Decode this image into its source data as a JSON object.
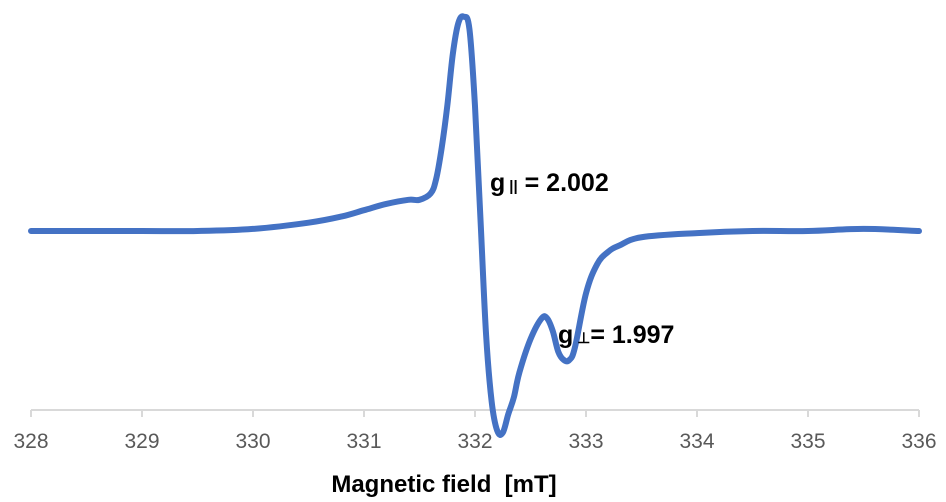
{
  "chart_data": {
    "type": "line",
    "title": "",
    "xlabel": "Magnetic field  [mT]",
    "ylabel": "",
    "xlim": [
      328,
      336
    ],
    "x_ticks": [
      "328",
      "329",
      "330",
      "331",
      "332",
      "333",
      "334",
      "335",
      "336"
    ],
    "grid": false,
    "legend": "none",
    "series_color": "#4472C4",
    "axis_color": "#D9D9D9",
    "series": [
      {
        "x": [
          328.0,
          328.5,
          329.0,
          329.5,
          330.0,
          330.5,
          330.8,
          331.0,
          331.2,
          331.4,
          331.5,
          331.6,
          331.65,
          331.7,
          331.75,
          331.8,
          331.85,
          331.9,
          331.95,
          332.0,
          332.05,
          332.1,
          332.15,
          332.2,
          332.25,
          332.3,
          332.35,
          332.4,
          332.5,
          332.6,
          332.65,
          332.7,
          332.75,
          332.8,
          332.85,
          332.9,
          333.0,
          333.1,
          333.2,
          333.3,
          333.5,
          334.0,
          334.5,
          335.0,
          335.5,
          336.0
        ],
        "values": [
          0.0,
          0.0,
          0.0,
          0.0,
          0.01,
          0.04,
          0.07,
          0.1,
          0.13,
          0.15,
          0.15,
          0.18,
          0.25,
          0.4,
          0.6,
          0.85,
          1.0,
          1.03,
          0.97,
          0.6,
          0.05,
          -0.5,
          -0.82,
          -0.96,
          -0.97,
          -0.88,
          -0.8,
          -0.68,
          -0.52,
          -0.42,
          -0.42,
          -0.48,
          -0.58,
          -0.62,
          -0.62,
          -0.56,
          -0.3,
          -0.16,
          -0.1,
          -0.07,
          -0.03,
          -0.01,
          0.0,
          0.0,
          0.01,
          0.0
        ]
      }
    ],
    "annotations": [
      {
        "label": "g",
        "subscript": "||",
        "text": " = 2.002"
      },
      {
        "label": "g",
        "subscript": "⊥",
        "text": "= 1.997"
      }
    ]
  }
}
